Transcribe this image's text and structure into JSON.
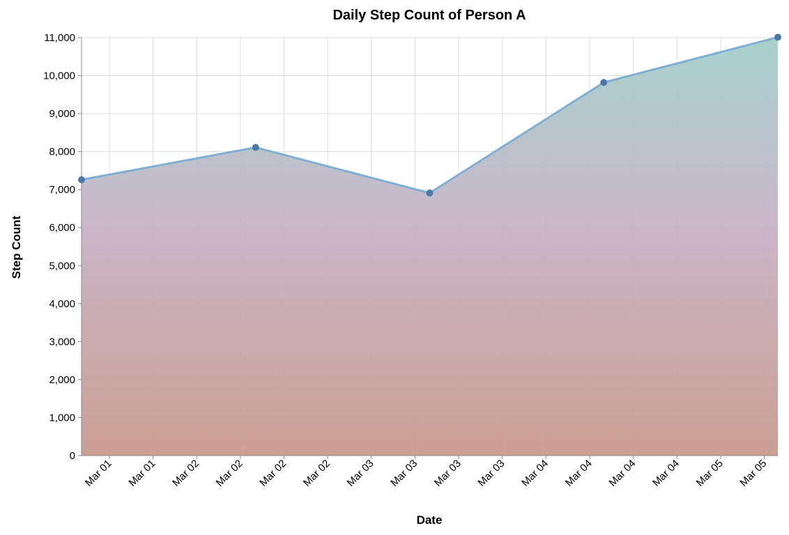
{
  "chart_data": {
    "type": "area",
    "title": "Daily Step Count of Person A",
    "xlabel": "Date",
    "ylabel": "Step Count",
    "x": [
      "2023-03-01",
      "2023-03-02",
      "2023-03-03",
      "2023-03-04",
      "2023-03-05"
    ],
    "values": [
      7260,
      8110,
      6910,
      9820,
      11010
    ],
    "xlim": [
      "2023-03-01",
      "2023-03-05"
    ],
    "ylim": [
      0,
      11000
    ],
    "y_ticks": [
      "0",
      "1,000",
      "2,000",
      "3,000",
      "4,000",
      "5,000",
      "6,000",
      "7,000",
      "8,000",
      "9,000",
      "10,000",
      "11,000"
    ],
    "x_ticks": [
      "Mar 01",
      "Mar 01",
      "Mar 02",
      "Mar 02",
      "Mar 02",
      "Mar 02",
      "Mar 03",
      "Mar 03",
      "Mar 03",
      "Mar 03",
      "Mar 04",
      "Mar 04",
      "Mar 04",
      "Mar 04",
      "Mar 05",
      "Mar 05"
    ],
    "grid": true,
    "colors": {
      "gradient_top": "#a3cfc9",
      "gradient_bottom": "#c89a8e",
      "gradient_mid": "#c7b3c6",
      "line": "#7fb0d4",
      "point": "#4c78a8"
    }
  }
}
